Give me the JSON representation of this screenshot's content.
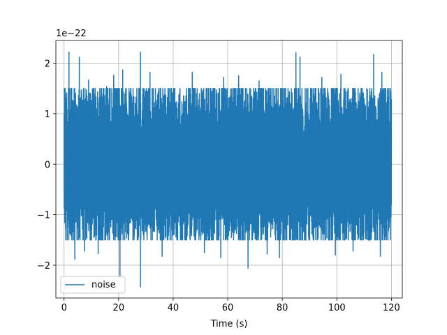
{
  "chart_data": {
    "type": "line",
    "xlabel": "Time (s)",
    "ylabel": "",
    "offset_text": "1e−22",
    "y_scale_exponent": -22,
    "xlim": [
      -3,
      124
    ],
    "ylim": [
      -2.65,
      2.45
    ],
    "x_ticks": [
      0,
      20,
      40,
      60,
      80,
      100,
      120
    ],
    "x_tick_labels": [
      "0",
      "20",
      "40",
      "60",
      "80",
      "100",
      "120"
    ],
    "y_ticks": [
      -2,
      -1,
      0,
      1,
      2
    ],
    "y_tick_labels": [
      "−2",
      "−1",
      "0",
      "1",
      "2"
    ],
    "grid": true,
    "legend_position": "lower-left",
    "series": [
      {
        "name": "noise",
        "color": "#1f77b4",
        "x_range": [
          0,
          120
        ],
        "typical_amplitude": 0.5,
        "envelope_max": 1.35,
        "envelope_min": -1.35,
        "peaks": [
          {
            "x": 0.5,
            "y": 1.42
          },
          {
            "x": 1.8,
            "y": 2.22
          },
          {
            "x": 5.6,
            "y": 2.12
          },
          {
            "x": 9.0,
            "y": 1.67
          },
          {
            "x": 15.6,
            "y": 1.54
          },
          {
            "x": 18.2,
            "y": 1.76
          },
          {
            "x": 21.5,
            "y": 1.87
          },
          {
            "x": 28.0,
            "y": 2.22
          },
          {
            "x": 31.5,
            "y": 1.82
          },
          {
            "x": 47.0,
            "y": 1.82
          },
          {
            "x": 58.5,
            "y": 1.72
          },
          {
            "x": 64.0,
            "y": 1.75
          },
          {
            "x": 71.5,
            "y": 1.65
          },
          {
            "x": 85.0,
            "y": 2.21
          },
          {
            "x": 86.5,
            "y": 2.12
          },
          {
            "x": 94.5,
            "y": 1.72
          },
          {
            "x": 101.5,
            "y": 1.78
          },
          {
            "x": 113.5,
            "y": 2.17
          },
          {
            "x": 116.5,
            "y": 1.82
          }
        ],
        "troughs": [
          {
            "x": 4.0,
            "y": -1.88
          },
          {
            "x": 7.5,
            "y": -1.72
          },
          {
            "x": 12.5,
            "y": -1.78
          },
          {
            "x": 20.5,
            "y": -2.25
          },
          {
            "x": 28.0,
            "y": -2.44
          },
          {
            "x": 36.0,
            "y": -1.82
          },
          {
            "x": 51.5,
            "y": -1.75
          },
          {
            "x": 57.5,
            "y": -1.85
          },
          {
            "x": 67.5,
            "y": -2.06
          },
          {
            "x": 74.5,
            "y": -1.78
          },
          {
            "x": 79.0,
            "y": -1.85
          },
          {
            "x": 99.5,
            "y": -1.8
          },
          {
            "x": 106.0,
            "y": -1.72
          },
          {
            "x": 116.0,
            "y": -1.82
          }
        ]
      }
    ]
  }
}
